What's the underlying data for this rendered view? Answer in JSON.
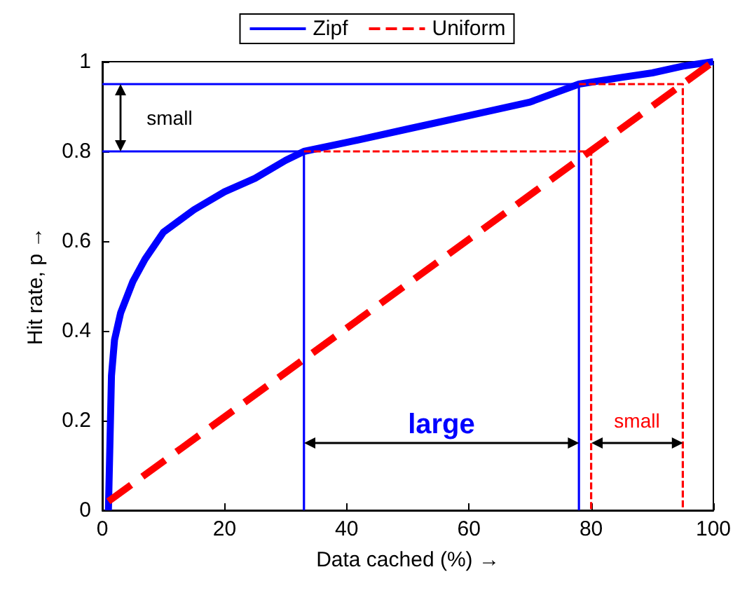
{
  "chart_data": {
    "type": "line",
    "xlabel": "Data cached (%) →",
    "ylabel": "Hit rate, p →",
    "xlim": [
      0,
      100
    ],
    "ylim": [
      0,
      1
    ],
    "xticks": [
      0,
      20,
      40,
      60,
      80,
      100
    ],
    "yticks": [
      0,
      0.2,
      0.4,
      0.6,
      0.8,
      1
    ],
    "grid": false,
    "legend": "top",
    "marker": "none",
    "series": [
      {
        "name": "Zipf",
        "color": "#0000ff",
        "line_style": "solid",
        "x": [
          1,
          1.5,
          2,
          3,
          5,
          7,
          10,
          15,
          20,
          25,
          30,
          33,
          40,
          50,
          60,
          70,
          78,
          85,
          90,
          95,
          100
        ],
        "values": [
          0,
          0.3,
          0.38,
          0.44,
          0.51,
          0.56,
          0.62,
          0.67,
          0.71,
          0.74,
          0.78,
          0.8,
          0.82,
          0.85,
          0.88,
          0.91,
          0.95,
          0.965,
          0.975,
          0.99,
          1
        ]
      },
      {
        "name": "Uniform",
        "color": "#ff0000",
        "line_style": "dashed",
        "x": [
          1,
          100
        ],
        "values": [
          0.02,
          1
        ]
      },
      {
        "color": "#0000ff",
        "line_style": "solid",
        "x": [
          0,
          78,
          78
        ],
        "values": [
          0.95,
          0.95,
          0
        ]
      },
      {
        "color": "#0000ff",
        "line_style": "solid",
        "x": [
          0,
          33,
          33
        ],
        "values": [
          0.8,
          0.8,
          0
        ]
      },
      {
        "color": "#ff0000",
        "line_style": "dashed",
        "x": [
          33,
          80,
          80
        ],
        "values": [
          0.8,
          0.8,
          0
        ]
      },
      {
        "color": "#ff0000",
        "line_style": "dashed",
        "x": [
          78,
          95,
          95
        ],
        "values": [
          0.95,
          0.95,
          0
        ]
      }
    ],
    "annotations": [
      "small",
      "large",
      "small"
    ]
  }
}
